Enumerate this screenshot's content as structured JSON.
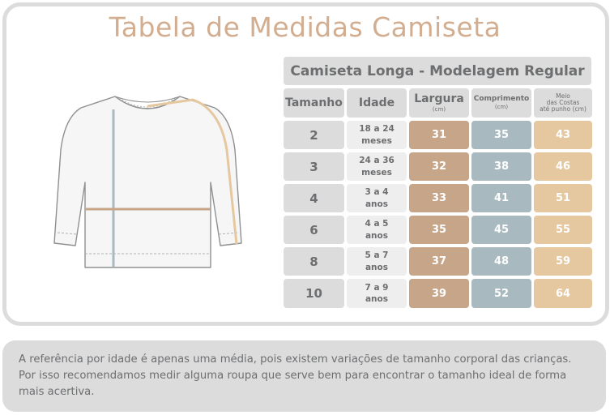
{
  "title": "Tabela de Medidas Camiseta",
  "table": {
    "title": "Camiseta Longa - Modelagem Regular",
    "headers": {
      "tamanho": "Tamanho",
      "idade": "Idade",
      "largura": "Largura",
      "largura_unit": "(cm)",
      "comprimento": "Comprimento",
      "comprimento_unit": "(cm)",
      "meio_line1": "Meio",
      "meio_line2": "das Costas",
      "meio_line3": "até punho (cm)"
    },
    "rows": [
      {
        "tamanho": "2",
        "idade": "18 a 24\nmeses",
        "largura": "31",
        "comprimento": "35",
        "meio": "43"
      },
      {
        "tamanho": "3",
        "idade": "24 a 36\nmeses",
        "largura": "32",
        "comprimento": "38",
        "meio": "46"
      },
      {
        "tamanho": "4",
        "idade": "3 a 4\nanos",
        "largura": "33",
        "comprimento": "41",
        "meio": "51"
      },
      {
        "tamanho": "6",
        "idade": "4 a 5\nanos",
        "largura": "35",
        "comprimento": "45",
        "meio": "55"
      },
      {
        "tamanho": "8",
        "idade": "5 a 7\nanos",
        "largura": "37",
        "comprimento": "48",
        "meio": "59"
      },
      {
        "tamanho": "10",
        "idade": "7 a 9\nanos",
        "largura": "39",
        "comprimento": "52",
        "meio": "64"
      }
    ]
  },
  "colors": {
    "title": "#d2ad8f",
    "largura": "#c6a589",
    "comprimento": "#a8b9c0",
    "meio": "#e5c8a0",
    "grey": "#dcdcdc"
  },
  "illustration": {
    "name": "long-sleeve-shirt-icon"
  },
  "note": "A referência por idade é apenas uma média, pois existem variações de tamanho corporal das crianças. Por isso recomendamos medir alguma roupa que serve bem para encontrar o tamanho ideal de forma mais acertiva."
}
